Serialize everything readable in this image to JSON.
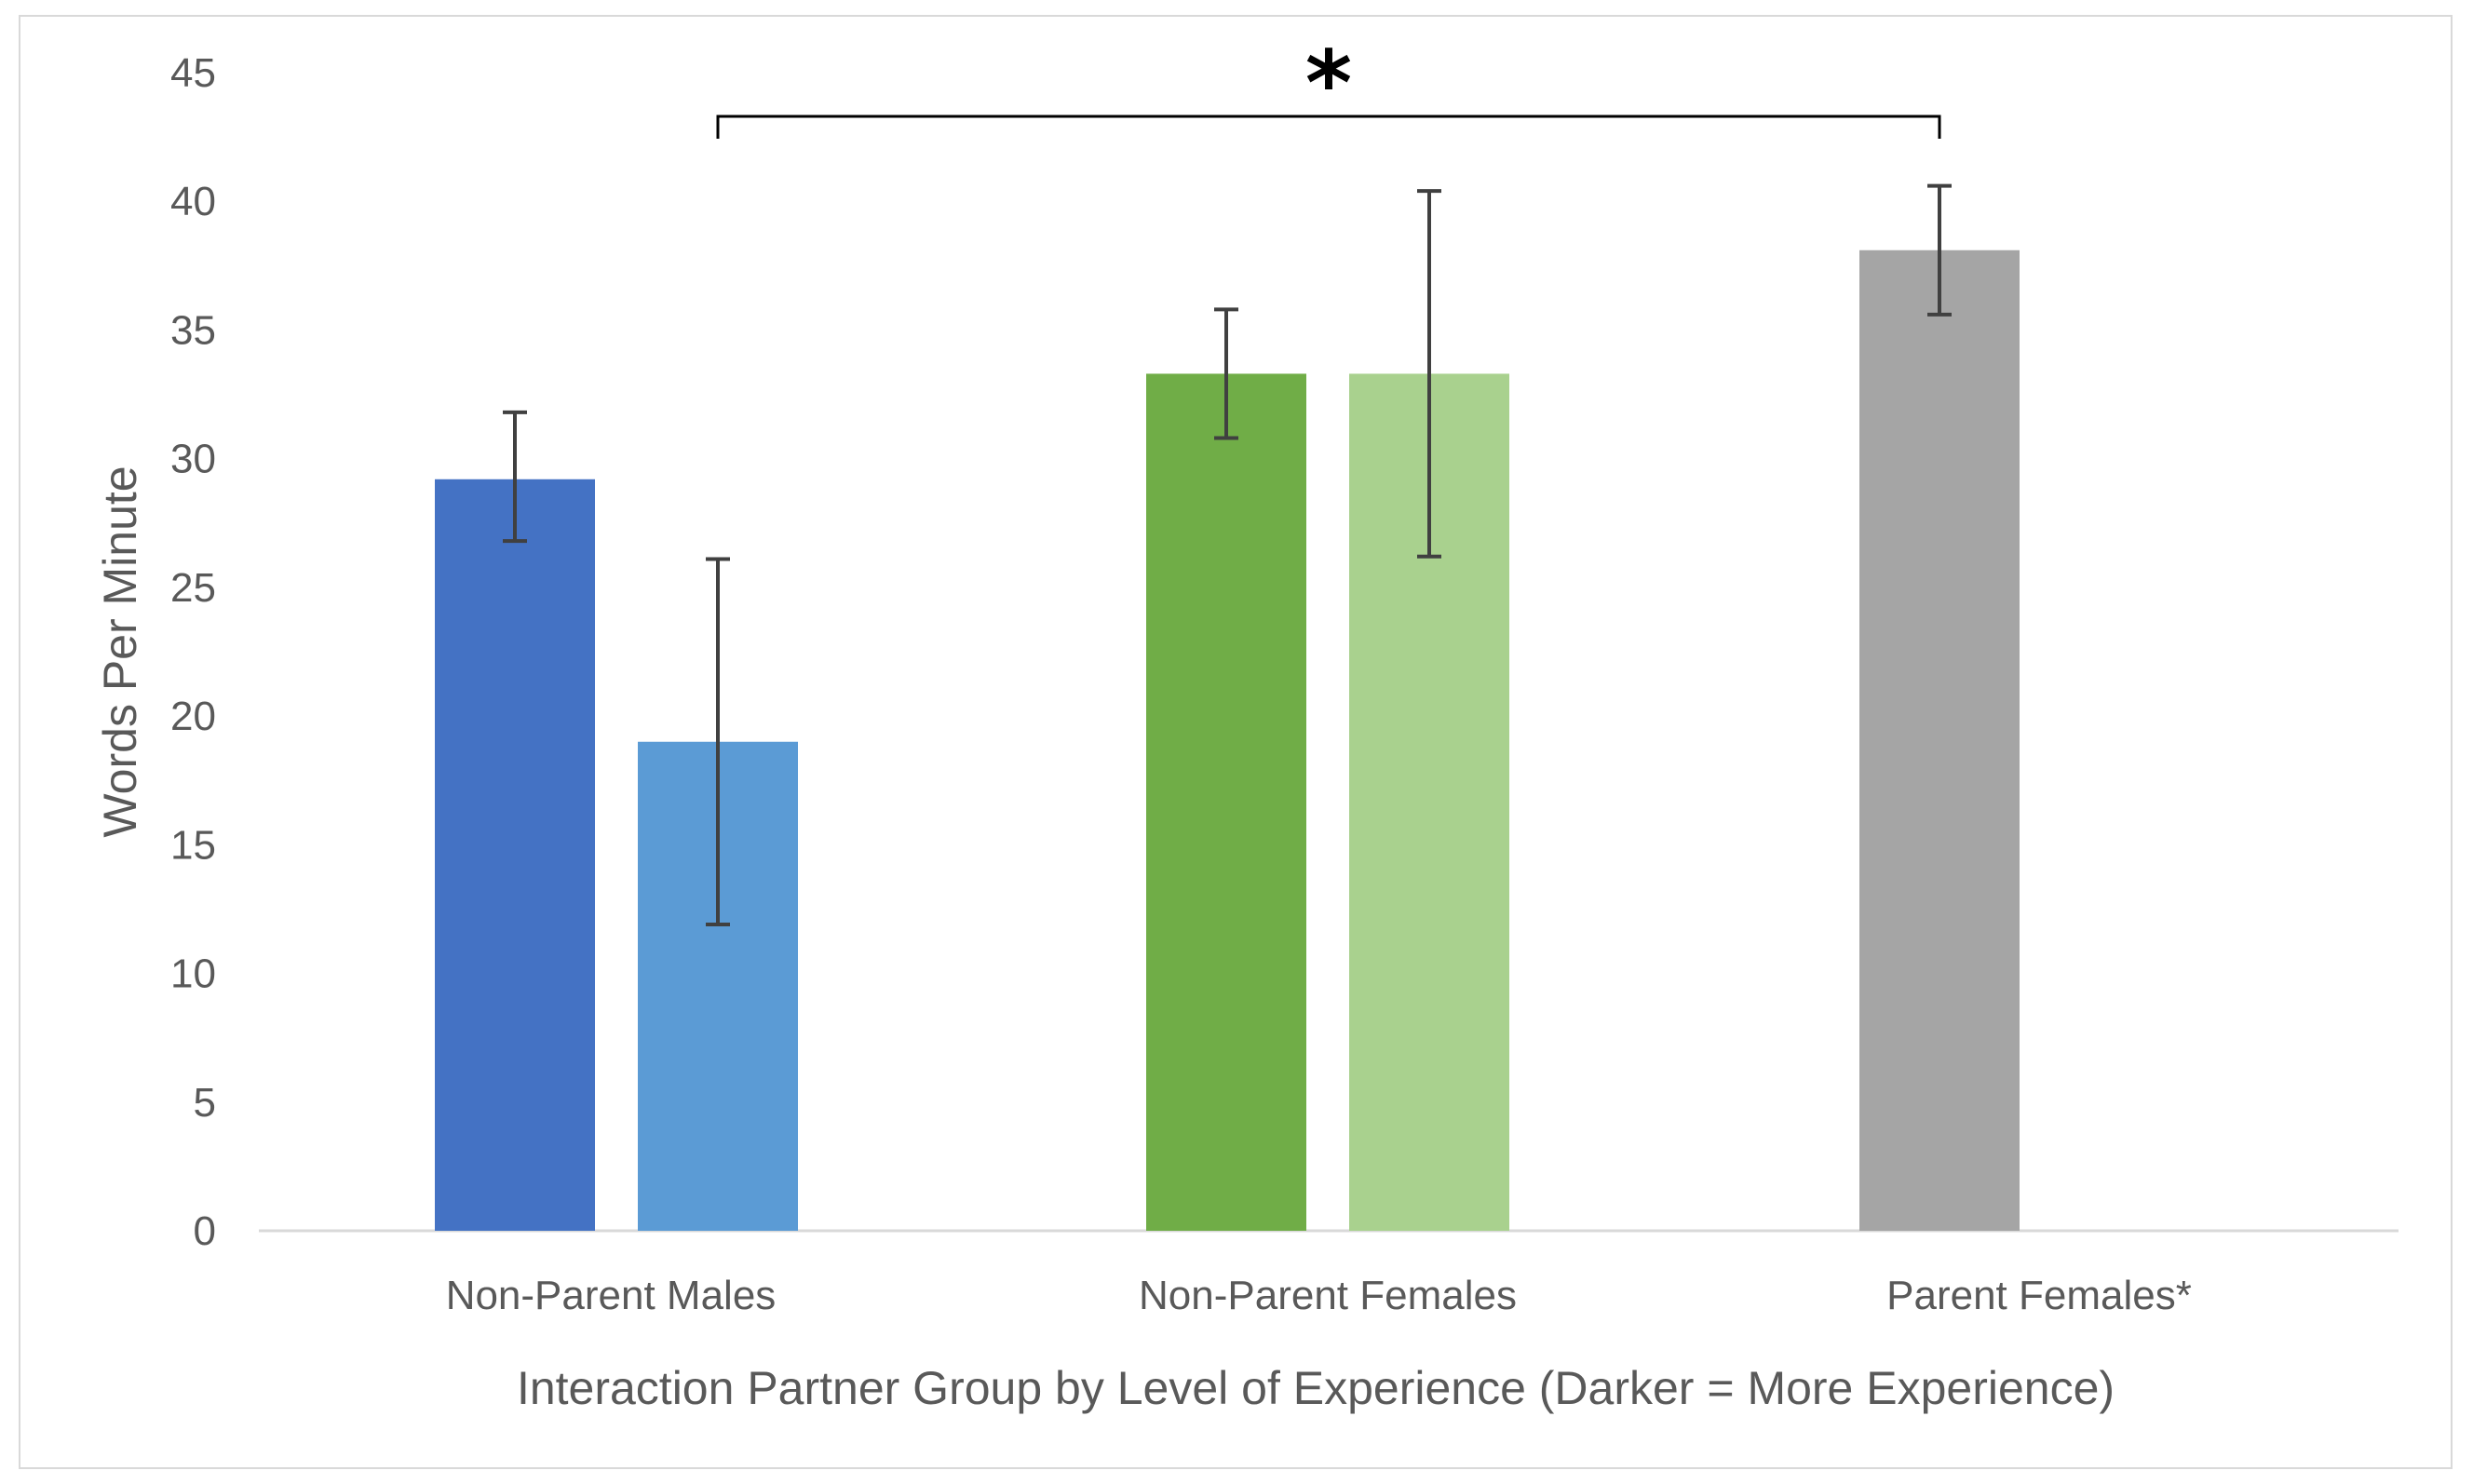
{
  "chart_data": {
    "type": "bar",
    "title": "",
    "xlabel": "Interaction Partner Group by Level of Experience (Darker = More Experience)",
    "ylabel": "Words Per Minute",
    "ylim": [
      0,
      45
    ],
    "yticks": [
      "0",
      "5",
      "10",
      "15",
      "20",
      "25",
      "30",
      "35",
      "40",
      "45"
    ],
    "grid": false,
    "categories": [
      "Non-Parent Males",
      "Non-Parent Females",
      "Parent Females*"
    ],
    "bars": [
      {
        "category": "Non-Parent Males",
        "experience": "more",
        "value": 29.2,
        "error_low": 26.8,
        "error_high": 31.8,
        "color": "#4472c4"
      },
      {
        "category": "Non-Parent Males",
        "experience": "less",
        "value": 19.0,
        "error_low": 11.9,
        "error_high": 26.1,
        "color": "#5b9bd5"
      },
      {
        "category": "Non-Parent Females",
        "experience": "more",
        "value": 33.3,
        "error_low": 30.8,
        "error_high": 35.8,
        "color": "#70ad47"
      },
      {
        "category": "Non-Parent Females",
        "experience": "less",
        "value": 33.3,
        "error_low": 26.2,
        "error_high": 40.4,
        "color": "#a9d18e"
      },
      {
        "category": "Parent Females*",
        "experience": "more",
        "value": 38.1,
        "error_low": 35.6,
        "error_high": 40.6,
        "color": "#a5a5a5"
      }
    ],
    "significance": {
      "marker": "*",
      "from_bar": 1,
      "to_bar": 4,
      "bracket_value": 43.3
    },
    "colors": {
      "axis": "#d9d9d9",
      "text": "#595959",
      "error_bar": "#404040",
      "bracket": "#000000"
    }
  }
}
